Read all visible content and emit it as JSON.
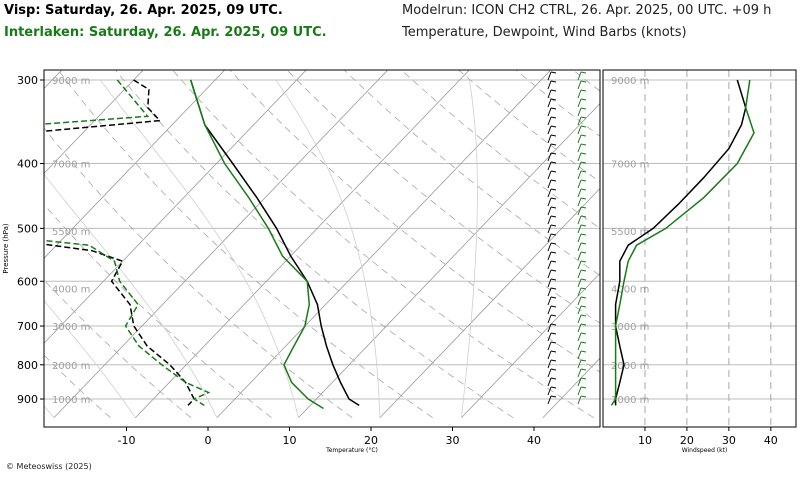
{
  "header": {
    "station1": "Visp: Saturday, 26. Apr. 2025, 09 UTC.",
    "station2": "Interlaken: Saturday, 26. Apr. 2025, 09 UTC.",
    "model": "Modelrun: ICON CH2 CTRL, 26. Apr. 2025, 00 UTC. +09 h",
    "subtitle": "Temperature, Dewpoint, Wind Barbs (knots)"
  },
  "colors": {
    "station1": "#000000",
    "station2": "#1a7a1a"
  },
  "copyright": "© Meteoswiss (2025)",
  "chart_data": [
    {
      "type": "line",
      "subtype": "skew-T log-P",
      "xlabel": "Temperature (°C)",
      "ylabel": "Pressure (hPa)",
      "xlim": [
        -25,
        45
      ],
      "ylim": [
        300,
        960
      ],
      "y_scale": "log",
      "x_ticks": [
        -10,
        0,
        10,
        20,
        30,
        40
      ],
      "y_ticks": [
        300,
        400,
        500,
        600,
        700,
        800,
        900
      ],
      "height_labels": [
        {
          "label": "9000 m",
          "p": 300
        },
        {
          "label": "7000 m",
          "p": 400
        },
        {
          "label": "5500 m",
          "p": 505
        },
        {
          "label": "4000 m",
          "p": 615
        },
        {
          "label": "3000 m",
          "p": 700
        },
        {
          "label": "2000 m",
          "p": 800
        },
        {
          "label": "1000 m",
          "p": 900
        }
      ],
      "series": [
        {
          "name": "Visp",
          "kind": "temperature",
          "color": "#000000",
          "p": [
            300,
            350,
            400,
            450,
            500,
            550,
            600,
            650,
            700,
            750,
            800,
            850,
            900,
            920
          ],
          "t": [
            -43,
            -36,
            -28,
            -21,
            -15,
            -10,
            -5,
            -1,
            2,
            5,
            8,
            11,
            14,
            16
          ]
        },
        {
          "name": "Visp",
          "kind": "dewpoint",
          "color": "#000000",
          "p": [
            300,
            310,
            330,
            345,
            360,
            380,
            400,
            500,
            540,
            560,
            600,
            650,
            700,
            750,
            800,
            850,
            900,
            920
          ],
          "t": [
            -50,
            -47,
            -45,
            -42,
            -57,
            -61,
            -64,
            -58,
            -35,
            -30,
            -29,
            -24,
            -21,
            -17,
            -12,
            -8,
            -5,
            -5
          ]
        },
        {
          "name": "Interlaken",
          "kind": "temperature",
          "color": "#1a7a1a",
          "p": [
            300,
            350,
            400,
            450,
            500,
            550,
            600,
            650,
            700,
            750,
            800,
            850,
            900,
            930
          ],
          "t": [
            -43,
            -36,
            -29,
            -22,
            -16,
            -11,
            -5,
            -2,
            0,
            1,
            2,
            5,
            9,
            12
          ]
        },
        {
          "name": "Interlaken",
          "kind": "dewpoint",
          "color": "#1a7a1a",
          "p": [
            300,
            340,
            350,
            360,
            400,
            500,
            530,
            560,
            600,
            650,
            700,
            750,
            800,
            850,
            880,
            900,
            920
          ],
          "t": [
            -52,
            -44,
            -57,
            -64,
            -66,
            -58,
            -36,
            -31,
            -28,
            -23,
            -22,
            -18,
            -13,
            -8,
            -4,
            -5,
            -3
          ]
        }
      ]
    },
    {
      "type": "line",
      "xlabel": "Windspeed (kt)",
      "xlim": [
        0,
        46
      ],
      "ylim": [
        300,
        960
      ],
      "y_scale": "log",
      "x_ticks": [
        10,
        20,
        30,
        40
      ],
      "series": [
        {
          "name": "Visp",
          "color": "#000000",
          "p": [
            300,
            330,
            350,
            380,
            420,
            460,
            500,
            530,
            560,
            600,
            650,
            700,
            750,
            800,
            850,
            900,
            920
          ],
          "v": [
            32,
            34,
            33,
            30,
            24,
            18,
            12,
            6,
            4,
            4,
            3,
            3,
            4,
            5,
            4,
            3,
            3
          ]
        },
        {
          "name": "Interlaken",
          "color": "#1a7a1a",
          "p": [
            300,
            330,
            360,
            400,
            450,
            500,
            530,
            560,
            600,
            650,
            700,
            750,
            800,
            850,
            900,
            920
          ],
          "v": [
            35,
            34,
            36,
            32,
            24,
            15,
            8,
            6,
            5,
            4,
            3,
            3,
            3,
            3,
            3,
            2
          ]
        }
      ]
    }
  ]
}
